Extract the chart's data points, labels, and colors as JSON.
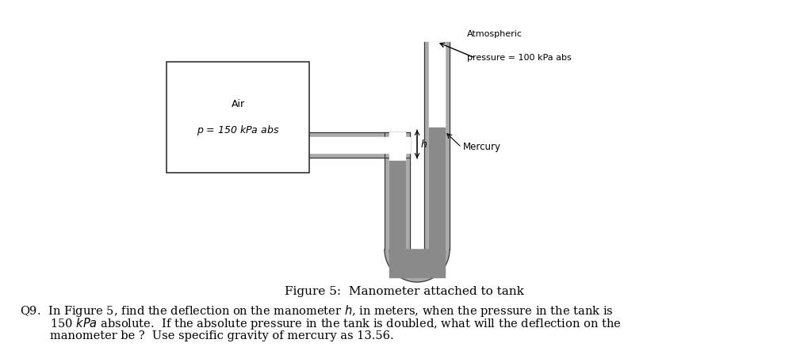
{
  "fig_width": 10.2,
  "fig_height": 4.38,
  "dpi": 100,
  "bg_color": "#ffffff",
  "figure_caption": "Figure 5:  Manometer attached to tank",
  "caption_fontsize": 11,
  "question_text_line1": "Q9.  In Figure 5, find the deflection on the manometer $h$, in meters, when the pressure in the tank is",
  "question_text_line2": "150 $kPa$ absolute.  If the absolute pressure in the tank is doubled, what will the deflection on the",
  "question_text_line3": "manometer be ?  Use specific gravity of mercury as 13.56.",
  "tank_label_air": "Air",
  "tank_label_p": "$p$ = 150 kPa abs",
  "atm_label_line1": "Atmospheric",
  "atm_label_line2": "pressure = 100 kPa abs",
  "mercury_label": "Mercury",
  "h_label": "$h$",
  "tube_color": "#aaaaaa",
  "mercury_color": "#8a8a8a",
  "tube_border_color": "#333333",
  "tank_border_color": "#333333",
  "text_color": "#000000",
  "arrow_color": "#000000"
}
